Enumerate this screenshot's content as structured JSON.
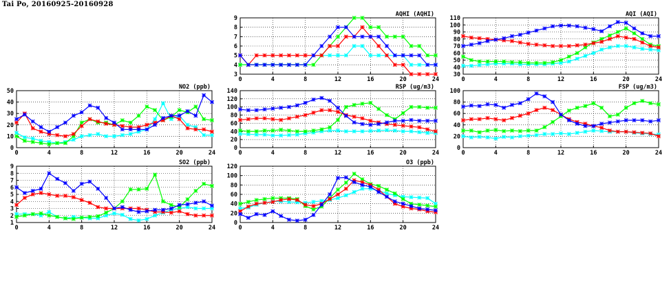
{
  "page": {
    "title": "Tai Po, 20160925-20160928"
  },
  "colors": {
    "series_1": "#00ffff",
    "series_2": "#00ff00",
    "series_3": "#ff0000",
    "series_4": "#0000ff"
  },
  "chart_data": [
    {
      "id": "aqhi",
      "type": "line",
      "title": "AQHI (AQHI)",
      "ylim": [
        3,
        9
      ],
      "yticks": [
        3,
        4,
        5,
        6,
        7,
        8,
        9
      ],
      "xlim": [
        0,
        24
      ],
      "xticks": [
        0,
        4,
        8,
        12,
        16,
        20,
        24
      ],
      "grid": true,
      "x": [
        0,
        1,
        2,
        3,
        4,
        5,
        6,
        7,
        8,
        9,
        10,
        11,
        12,
        13,
        14,
        15,
        16,
        17,
        18,
        19,
        20,
        21,
        22,
        23,
        24
      ],
      "series": [
        {
          "color": "#00ffff",
          "values": [
            4,
            4,
            4,
            4,
            4,
            4,
            4,
            4,
            4,
            5,
            5,
            5,
            5,
            5,
            6,
            6,
            5,
            5,
            5,
            5,
            5,
            4,
            4,
            4,
            4
          ]
        },
        {
          "color": "#00ff00",
          "values": [
            4,
            4,
            4,
            4,
            4,
            4,
            4,
            4,
            4,
            4,
            5,
            6,
            7,
            8,
            9,
            9,
            8,
            8,
            7,
            7,
            7,
            6,
            6,
            5,
            5
          ]
        },
        {
          "color": "#ff0000",
          "values": [
            5,
            4,
            5,
            5,
            5,
            5,
            5,
            5,
            5,
            5,
            5,
            6,
            6,
            7,
            7,
            8,
            7,
            6,
            5,
            4,
            4,
            3,
            3,
            3,
            3
          ]
        },
        {
          "color": "#0000ff",
          "values": [
            5,
            4,
            4,
            4,
            4,
            4,
            4,
            4,
            4,
            5,
            6,
            7,
            8,
            8,
            7,
            7,
            7,
            7,
            6,
            5,
            5,
            5,
            5,
            4,
            4
          ]
        }
      ]
    },
    {
      "id": "aqi",
      "type": "line",
      "title": "AQI (AQI)",
      "ylim": [
        30,
        110
      ],
      "yticks": [
        30,
        40,
        50,
        60,
        70,
        80,
        90,
        100,
        110
      ],
      "xlim": [
        0,
        24
      ],
      "xticks": [
        0,
        4,
        8,
        12,
        16,
        20,
        24
      ],
      "grid": true,
      "x": [
        0,
        1,
        2,
        3,
        4,
        5,
        6,
        7,
        8,
        9,
        10,
        11,
        12,
        13,
        14,
        15,
        16,
        17,
        18,
        19,
        20,
        21,
        22,
        23,
        24
      ],
      "series": [
        {
          "color": "#00ffff",
          "values": [
            42,
            42,
            43,
            44,
            45,
            45,
            45,
            44,
            44,
            44,
            44,
            45,
            46,
            48,
            52,
            56,
            60,
            65,
            68,
            70,
            70,
            68,
            66,
            65,
            64
          ]
        },
        {
          "color": "#00ff00",
          "values": [
            55,
            50,
            48,
            48,
            48,
            48,
            47,
            47,
            46,
            46,
            46,
            47,
            50,
            55,
            60,
            68,
            75,
            80,
            85,
            90,
            95,
            88,
            80,
            72,
            70
          ]
        },
        {
          "color": "#ff0000",
          "values": [
            84,
            82,
            81,
            80,
            79,
            78,
            77,
            75,
            73,
            72,
            71,
            70,
            70,
            70,
            71,
            72,
            74,
            76,
            80,
            84,
            82,
            80,
            75,
            70,
            68
          ]
        },
        {
          "color": "#0000ff",
          "values": [
            70,
            72,
            74,
            77,
            79,
            81,
            84,
            86,
            89,
            92,
            95,
            98,
            99,
            99,
            98,
            96,
            94,
            91,
            98,
            104,
            103,
            95,
            88,
            84,
            84
          ]
        }
      ]
    },
    {
      "id": "no2",
      "type": "line",
      "title": "NO2 (ppb)",
      "ylim": [
        0,
        50
      ],
      "yticks": [
        0,
        10,
        20,
        30,
        40,
        50
      ],
      "xlim": [
        0,
        24
      ],
      "xticks": [
        0,
        4,
        8,
        12,
        16,
        20,
        24
      ],
      "grid": true,
      "x": [
        0,
        1,
        2,
        3,
        4,
        5,
        6,
        7,
        8,
        9,
        10,
        11,
        12,
        13,
        14,
        15,
        16,
        17,
        18,
        19,
        20,
        21,
        22,
        23,
        24
      ],
      "series": [
        {
          "color": "#00ffff",
          "values": [
            13,
            9,
            8,
            6,
            5,
            4,
            5,
            7,
            10,
            11,
            12,
            10,
            10,
            11,
            12,
            14,
            16,
            25,
            39,
            25,
            28,
            20,
            18,
            11,
            11
          ]
        },
        {
          "color": "#00ff00",
          "values": [
            10,
            6,
            5,
            4,
            3,
            4,
            4,
            10,
            22,
            25,
            22,
            22,
            20,
            24,
            22,
            28,
            36,
            33,
            24,
            27,
            33,
            31,
            36,
            25,
            24
          ]
        },
        {
          "color": "#ff0000",
          "values": [
            22,
            30,
            17,
            14,
            12,
            11,
            10,
            12,
            19,
            25,
            23,
            21,
            20,
            19,
            18,
            18,
            20,
            22,
            24,
            28,
            25,
            17,
            16,
            16,
            14
          ]
        },
        {
          "color": "#0000ff",
          "values": [
            25,
            29,
            23,
            18,
            14,
            18,
            22,
            28,
            31,
            37,
            35,
            26,
            22,
            16,
            16,
            16,
            16,
            20,
            26,
            28,
            28,
            32,
            28,
            46,
            40
          ]
        }
      ]
    },
    {
      "id": "rsp",
      "type": "line",
      "title": "RSP (ug/m3)",
      "ylim": [
        0,
        140
      ],
      "yticks": [
        0,
        20,
        40,
        60,
        80,
        100,
        120,
        140
      ],
      "xlim": [
        0,
        24
      ],
      "xticks": [
        0,
        4,
        8,
        12,
        16,
        20,
        24
      ],
      "grid": true,
      "x": [
        0,
        1,
        2,
        3,
        4,
        5,
        6,
        7,
        8,
        9,
        10,
        11,
        12,
        13,
        14,
        15,
        16,
        17,
        18,
        19,
        20,
        21,
        22,
        23,
        24
      ],
      "series": [
        {
          "color": "#00ffff",
          "values": [
            34,
            33,
            32,
            32,
            30,
            30,
            31,
            32,
            35,
            37,
            40,
            42,
            42,
            40,
            40,
            40,
            41,
            42,
            43,
            42,
            40,
            40,
            38,
            36,
            36
          ]
        },
        {
          "color": "#00ff00",
          "values": [
            42,
            40,
            40,
            42,
            42,
            44,
            42,
            40,
            40,
            42,
            45,
            50,
            68,
            100,
            105,
            108,
            110,
            95,
            80,
            70,
            85,
            100,
            100,
            98,
            98
          ]
        },
        {
          "color": "#ff0000",
          "values": [
            68,
            70,
            72,
            72,
            70,
            68,
            72,
            76,
            80,
            86,
            92,
            92,
            88,
            80,
            76,
            72,
            66,
            62,
            58,
            56,
            54,
            52,
            50,
            45,
            40
          ]
        },
        {
          "color": "#0000ff",
          "values": [
            94,
            92,
            92,
            94,
            96,
            98,
            100,
            104,
            110,
            118,
            122,
            115,
            98,
            78,
            62,
            58,
            56,
            58,
            62,
            66,
            66,
            68,
            66,
            66,
            66
          ]
        }
      ]
    },
    {
      "id": "fsp",
      "type": "line",
      "title": "FSP (ug/m3)",
      "ylim": [
        0,
        100
      ],
      "yticks": [
        0,
        20,
        40,
        60,
        80,
        100
      ],
      "xlim": [
        0,
        24
      ],
      "xticks": [
        0,
        4,
        8,
        12,
        16,
        20,
        24
      ],
      "grid": true,
      "x": [
        0,
        1,
        2,
        3,
        4,
        5,
        6,
        7,
        8,
        9,
        10,
        11,
        12,
        13,
        14,
        15,
        16,
        17,
        18,
        19,
        20,
        21,
        22,
        23,
        24
      ],
      "series": [
        {
          "color": "#00ffff",
          "values": [
            20,
            18,
            19,
            18,
            16,
            19,
            18,
            20,
            21,
            22,
            24,
            24,
            25,
            24,
            26,
            28,
            30,
            29,
            28,
            28,
            28,
            26,
            25,
            24,
            23
          ]
        },
        {
          "color": "#00ff00",
          "values": [
            30,
            30,
            27,
            30,
            31,
            29,
            30,
            29,
            30,
            30,
            36,
            45,
            55,
            65,
            70,
            73,
            78,
            70,
            55,
            58,
            70,
            78,
            82,
            78,
            76
          ]
        },
        {
          "color": "#ff0000",
          "values": [
            48,
            50,
            50,
            52,
            50,
            48,
            52,
            56,
            60,
            66,
            70,
            66,
            58,
            50,
            45,
            42,
            38,
            35,
            30,
            28,
            28,
            27,
            26,
            25,
            20
          ]
        },
        {
          "color": "#0000ff",
          "values": [
            72,
            74,
            73,
            76,
            75,
            70,
            75,
            78,
            85,
            95,
            90,
            80,
            58,
            48,
            42,
            38,
            38,
            42,
            44,
            46,
            48,
            48,
            48,
            46,
            48
          ]
        }
      ]
    },
    {
      "id": "so2",
      "type": "line",
      "title": "SO2 (ppb)",
      "ylim": [
        1,
        9
      ],
      "yticks": [
        1,
        2,
        3,
        4,
        5,
        6,
        7,
        8,
        9
      ],
      "xlim": [
        0,
        24
      ],
      "xticks": [
        0,
        4,
        8,
        12,
        16,
        20,
        24
      ],
      "grid": true,
      "x": [
        0,
        1,
        2,
        3,
        4,
        5,
        6,
        7,
        8,
        9,
        10,
        11,
        12,
        13,
        14,
        15,
        16,
        17,
        18,
        19,
        20,
        21,
        22,
        23,
        24
      ],
      "series": [
        {
          "color": "#00ffff",
          "values": [
            2.2,
            2.2,
            2.2,
            2.0,
            2.5,
            1.8,
            1.6,
            1.8,
            1.7,
            1.6,
            1.6,
            2.0,
            2.3,
            2.1,
            1.5,
            1.3,
            1.5,
            2.0,
            2.4,
            2.8,
            3.0,
            3.2,
            3.0,
            3.0,
            3.0
          ]
        },
        {
          "color": "#00ff00",
          "values": [
            1.8,
            2.0,
            2.2,
            2.3,
            2.0,
            1.8,
            1.6,
            1.5,
            1.7,
            1.8,
            1.9,
            2.4,
            3.0,
            4.0,
            5.7,
            5.7,
            5.8,
            7.8,
            4.0,
            3.5,
            3.2,
            4.3,
            5.5,
            6.5,
            6.2
          ]
        },
        {
          "color": "#ff0000",
          "values": [
            3.5,
            4.5,
            5.0,
            5.2,
            5.0,
            4.8,
            4.8,
            4.6,
            4.2,
            3.8,
            3.2,
            3.0,
            3.0,
            3.0,
            3.0,
            3.0,
            2.8,
            2.5,
            2.5,
            2.4,
            2.6,
            2.2,
            2.0,
            2.0,
            2.0
          ]
        },
        {
          "color": "#0000ff",
          "values": [
            6.0,
            5.2,
            5.5,
            5.8,
            8.0,
            7.2,
            6.6,
            5.5,
            6.5,
            6.8,
            5.8,
            4.5,
            3.0,
            3.2,
            2.8,
            2.5,
            2.6,
            2.8,
            2.8,
            3.0,
            3.5,
            3.6,
            3.8,
            4.0,
            3.4
          ]
        }
      ]
    },
    {
      "id": "o3",
      "type": "line",
      "title": "O3 (ppb)",
      "ylim": [
        0,
        120
      ],
      "yticks": [
        0,
        20,
        40,
        60,
        80,
        100,
        120
      ],
      "xlim": [
        0,
        24
      ],
      "xticks": [
        0,
        4,
        8,
        12,
        16,
        20,
        24
      ],
      "grid": true,
      "x": [
        0,
        1,
        2,
        3,
        4,
        5,
        6,
        7,
        8,
        9,
        10,
        11,
        12,
        13,
        14,
        15,
        16,
        17,
        18,
        19,
        20,
        21,
        22,
        23,
        24
      ],
      "series": [
        {
          "color": "#00ffff",
          "values": [
            30,
            32,
            38,
            42,
            45,
            45,
            44,
            43,
            42,
            44,
            46,
            48,
            52,
            58,
            65,
            72,
            72,
            68,
            62,
            58,
            55,
            54,
            53,
            52,
            40
          ]
        },
        {
          "color": "#00ff00",
          "values": [
            40,
            44,
            48,
            50,
            52,
            52,
            52,
            50,
            35,
            28,
            34,
            52,
            70,
            85,
            104,
            92,
            82,
            78,
            70,
            62,
            50,
            40,
            38,
            36,
            34
          ]
        },
        {
          "color": "#ff0000",
          "values": [
            24,
            34,
            40,
            42,
            44,
            48,
            50,
            48,
            38,
            35,
            40,
            50,
            60,
            72,
            90,
            86,
            80,
            70,
            55,
            40,
            34,
            30,
            28,
            24,
            22
          ]
        },
        {
          "color": "#0000ff",
          "values": [
            18,
            10,
            18,
            16,
            24,
            14,
            6,
            4,
            6,
            16,
            38,
            60,
            95,
            96,
            86,
            80,
            76,
            65,
            55,
            45,
            40,
            35,
            30,
            28,
            26
          ]
        }
      ]
    }
  ]
}
